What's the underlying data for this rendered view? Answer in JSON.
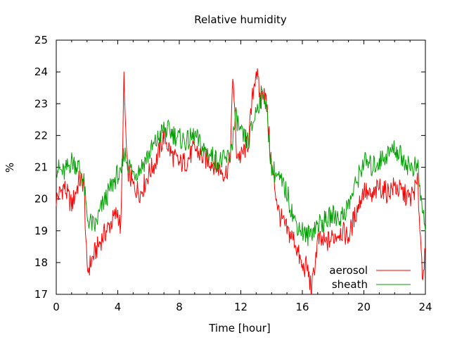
{
  "chart_data": {
    "type": "line",
    "title": "Relative humidity",
    "xlabel": "Time [hour]",
    "ylabel": "%",
    "xlim": [
      0,
      24
    ],
    "ylim": [
      17,
      25
    ],
    "x_ticks": [
      0,
      4,
      8,
      12,
      16,
      20,
      24
    ],
    "y_ticks": [
      17,
      18,
      19,
      20,
      21,
      22,
      23,
      24,
      25
    ],
    "grid": false,
    "legend_position": "bottom-right",
    "series": [
      {
        "name": "aerosol",
        "color": "#ff0000",
        "x": [
          0,
          0.5,
          1.0,
          1.5,
          1.8,
          2.0,
          2.5,
          3.0,
          3.5,
          4.0,
          4.2,
          4.4,
          4.6,
          5.0,
          5.5,
          6.0,
          6.5,
          7.0,
          7.5,
          8.0,
          8.5,
          9.0,
          9.5,
          10.0,
          10.5,
          11.0,
          11.3,
          11.5,
          11.7,
          12.0,
          12.5,
          12.8,
          13.0,
          13.3,
          13.5,
          13.7,
          14.0,
          14.5,
          15.0,
          15.5,
          16.0,
          16.3,
          16.6,
          17.0,
          17.5,
          18.0,
          18.5,
          19.0,
          19.5,
          20.0,
          20.5,
          21.0,
          21.5,
          22.0,
          22.5,
          23.0,
          23.5,
          23.8,
          24.0
        ],
        "y": [
          20.0,
          20.4,
          19.8,
          20.6,
          20.5,
          17.7,
          18.3,
          18.8,
          19.2,
          19.6,
          19.0,
          23.7,
          21.0,
          20.4,
          20.2,
          20.8,
          21.2,
          22.0,
          21.4,
          21.1,
          21.2,
          21.6,
          21.3,
          21.2,
          21.0,
          20.8,
          21.2,
          24.0,
          21.5,
          21.3,
          21.8,
          23.4,
          24.1,
          23.0,
          23.6,
          22.8,
          21.0,
          19.5,
          19.0,
          18.7,
          17.8,
          17.9,
          17.1,
          18.7,
          18.6,
          18.8,
          19.0,
          18.8,
          19.6,
          20.3,
          20.0,
          20.4,
          20.2,
          20.4,
          20.2,
          20.0,
          20.5,
          17.7,
          18.2
        ]
      },
      {
        "name": "sheath",
        "color": "#00a000",
        "x": [
          0,
          0.5,
          1.0,
          1.5,
          1.8,
          2.0,
          2.5,
          3.0,
          3.5,
          4.0,
          4.2,
          4.4,
          4.6,
          5.0,
          5.5,
          6.0,
          6.5,
          7.0,
          7.5,
          8.0,
          8.5,
          9.0,
          9.5,
          10.0,
          10.5,
          11.0,
          11.3,
          11.5,
          11.7,
          12.0,
          12.5,
          12.8,
          13.0,
          13.3,
          13.5,
          13.7,
          14.0,
          14.5,
          15.0,
          15.5,
          16.0,
          16.3,
          16.6,
          17.0,
          17.5,
          18.0,
          18.5,
          19.0,
          19.5,
          20.0,
          20.5,
          21.0,
          21.5,
          22.0,
          22.5,
          23.0,
          23.5,
          23.8,
          24.0
        ],
        "y": [
          21.0,
          20.8,
          21.2,
          21.0,
          20.5,
          19.4,
          19.1,
          19.8,
          20.3,
          20.8,
          20.6,
          21.5,
          21.2,
          20.8,
          21.0,
          21.4,
          21.8,
          22.2,
          22.1,
          21.9,
          21.8,
          22.0,
          21.6,
          21.4,
          21.2,
          21.2,
          21.4,
          22.0,
          22.6,
          22.0,
          21.8,
          22.4,
          22.8,
          23.2,
          23.4,
          22.6,
          21.0,
          20.6,
          20.2,
          19.3,
          19.0,
          18.8,
          19.0,
          19.2,
          19.3,
          19.5,
          19.4,
          19.8,
          20.5,
          21.2,
          21.0,
          21.2,
          21.4,
          21.6,
          21.3,
          21.0,
          21.0,
          19.6,
          19.2
        ]
      }
    ]
  }
}
